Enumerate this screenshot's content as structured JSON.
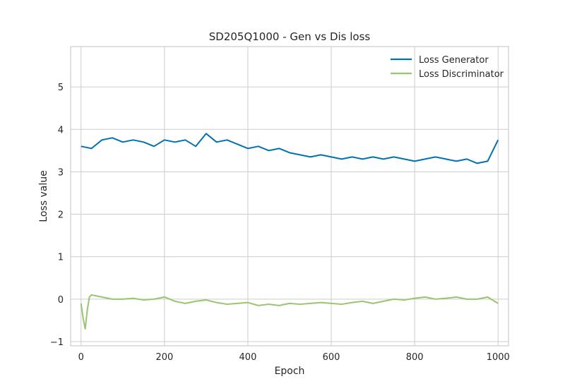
{
  "chart_data": {
    "type": "line",
    "title": "SD205Q1000 - Gen vs Dis loss",
    "xlabel": "Epoch",
    "ylabel": "Loss value",
    "xlim": [
      -25,
      1025
    ],
    "ylim": [
      -1.1,
      5.95
    ],
    "xticks": [
      0,
      200,
      400,
      600,
      800,
      1000
    ],
    "xtick_labels": [
      "0",
      "200",
      "400",
      "600",
      "800",
      "1000"
    ],
    "yticks": [
      -1,
      0,
      1,
      2,
      3,
      4,
      5
    ],
    "ytick_labels": [
      "−1",
      "0",
      "1",
      "2",
      "3",
      "4",
      "5"
    ],
    "grid": true,
    "legend_position": "upper-right",
    "series": [
      {
        "name": "Loss Generator",
        "color": "#0072B2",
        "x": [
          0,
          25,
          50,
          75,
          100,
          125,
          150,
          175,
          200,
          225,
          250,
          275,
          300,
          325,
          350,
          375,
          400,
          425,
          450,
          475,
          500,
          525,
          550,
          575,
          600,
          625,
          650,
          675,
          700,
          725,
          750,
          775,
          800,
          825,
          850,
          875,
          900,
          925,
          950,
          975,
          1000
        ],
        "values": [
          3.6,
          3.55,
          3.75,
          3.8,
          3.7,
          3.75,
          3.7,
          3.6,
          3.75,
          3.7,
          3.75,
          3.6,
          3.9,
          3.7,
          3.75,
          3.65,
          3.55,
          3.6,
          3.5,
          3.55,
          3.45,
          3.4,
          3.35,
          3.4,
          3.35,
          3.3,
          3.35,
          3.3,
          3.35,
          3.3,
          3.35,
          3.3,
          3.25,
          3.3,
          3.35,
          3.3,
          3.25,
          3.3,
          3.2,
          3.25,
          3.75
        ]
      },
      {
        "name": "Loss Discriminator",
        "color": "#9AC46F",
        "x": [
          0,
          5,
          10,
          15,
          20,
          25,
          50,
          75,
          100,
          125,
          150,
          175,
          200,
          225,
          250,
          275,
          300,
          325,
          350,
          375,
          400,
          425,
          450,
          475,
          500,
          525,
          550,
          575,
          600,
          625,
          650,
          675,
          700,
          725,
          750,
          775,
          800,
          825,
          850,
          875,
          900,
          925,
          950,
          975,
          1000
        ],
        "values": [
          -0.1,
          -0.45,
          -0.7,
          -0.25,
          0.05,
          0.1,
          0.05,
          0.0,
          0.0,
          0.02,
          -0.02,
          0.0,
          0.05,
          -0.05,
          -0.1,
          -0.05,
          -0.02,
          -0.08,
          -0.12,
          -0.1,
          -0.08,
          -0.15,
          -0.12,
          -0.15,
          -0.1,
          -0.12,
          -0.1,
          -0.08,
          -0.1,
          -0.12,
          -0.08,
          -0.05,
          -0.1,
          -0.05,
          0.0,
          -0.02,
          0.02,
          0.05,
          0.0,
          0.02,
          0.05,
          0.0,
          0.0,
          0.05,
          -0.1
        ]
      }
    ]
  }
}
